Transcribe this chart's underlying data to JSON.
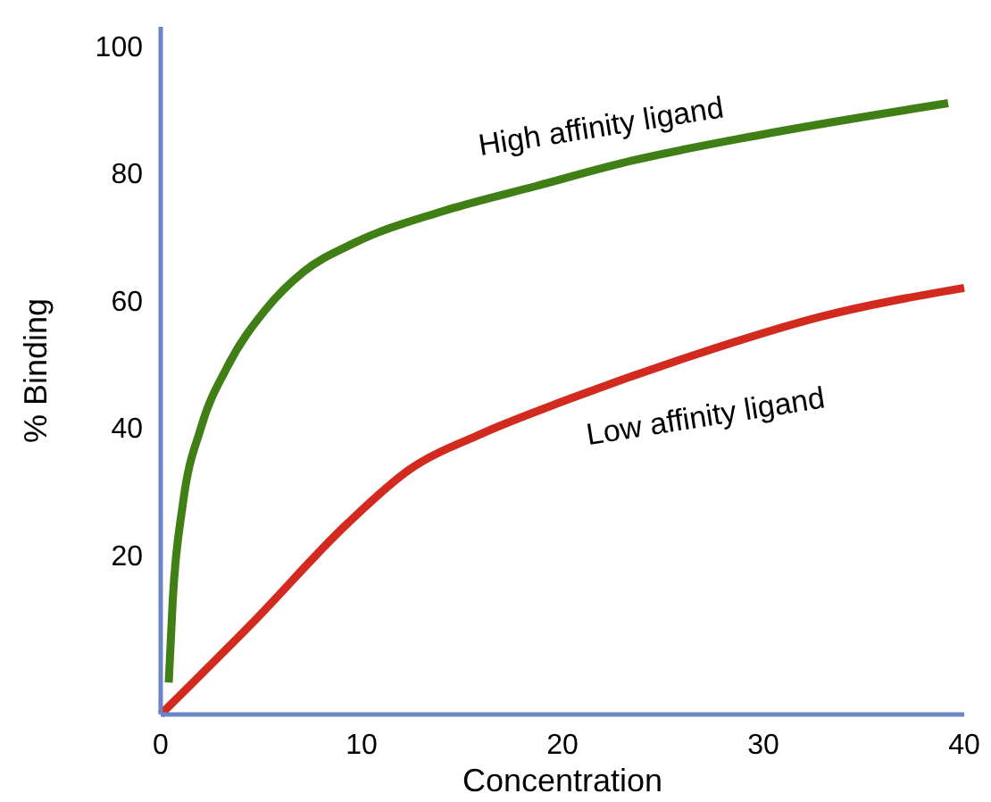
{
  "chart_data": {
    "type": "line",
    "xlabel": "Concentration",
    "ylabel": "% Binding",
    "xlim": [
      0,
      40
    ],
    "ylim": [
      -5,
      103
    ],
    "xticks": [
      0,
      10,
      20,
      30,
      40
    ],
    "yticks": [
      20,
      40,
      60,
      80,
      100
    ],
    "grid": false,
    "legend": false,
    "line_style": "solid",
    "series": [
      {
        "name": "High affinity ligand",
        "color": "#3f7f16",
        "x": [
          0.4,
          0.6,
          1.1,
          2,
          3.3,
          5.2,
          7.1,
          9.6,
          14,
          18.7,
          23.5,
          29.8,
          39.2
        ],
        "values": [
          0,
          13,
          28,
          40,
          49.5,
          58.5,
          64.5,
          69,
          74,
          78,
          82,
          86,
          91
        ]
      },
      {
        "name": "Low affinity ligand",
        "color": "#d22a1e",
        "x": [
          0,
          4.6,
          9.3,
          12.4,
          15.9,
          20.3,
          26.6,
          32.9,
          40
        ],
        "values": [
          -5,
          9.5,
          25,
          33.5,
          39,
          44.5,
          51.5,
          57.5,
          62
        ]
      }
    ]
  }
}
